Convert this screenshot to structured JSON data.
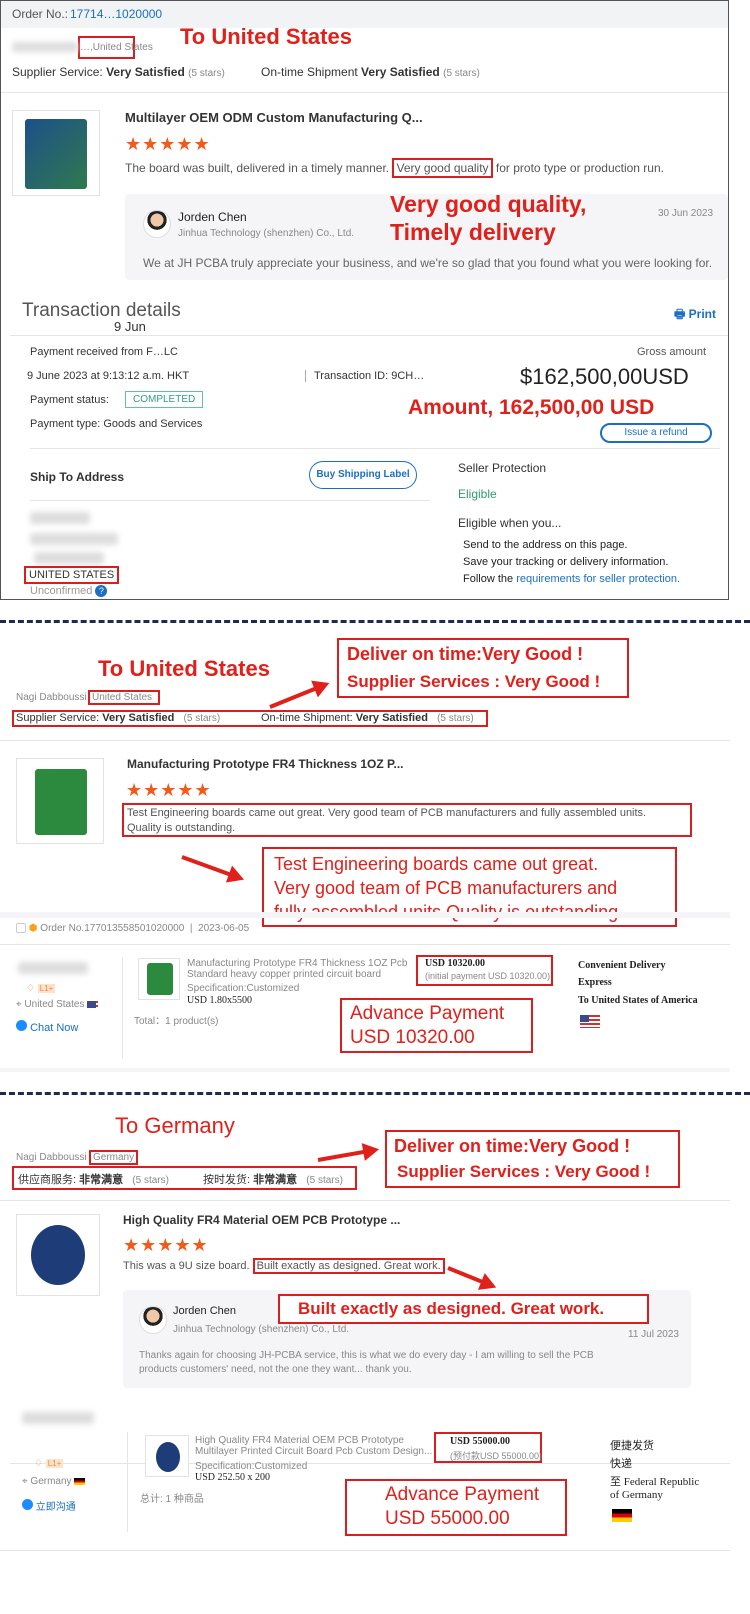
{
  "s1": {
    "order_label": "Order No.:",
    "order_no": "17714…1020000",
    "ship_to": "…,United States",
    "overlay_to": "To United States",
    "supplier_service_label": "Supplier Service:",
    "supplier_service": "Very Satisfied",
    "supplier_stars": "(5 stars)",
    "ontime_label": "On-time Shipment",
    "ontime": "Very Satisfied",
    "ontime_stars": "(5 stars)",
    "product_title": "Multilayer OEM ODM Custom Manufacturing Q...",
    "stars": "★★★★★",
    "review_pre": "The board was built, delivered in a timely manner.",
    "review_hl": "Very good quality",
    "review_post": "for proto type or production run.",
    "overlay_quality_1": "Very good quality,",
    "overlay_quality_2": "Timely delivery",
    "reply_name": "Jorden Chen",
    "reply_company": "Jinhua Technology (shenzhen) Co., Ltd.",
    "reply_date": "30 Jun 2023",
    "reply_text": "We at JH PCBA truly appreciate your business, and we're so glad that you found what you were looking for.",
    "tx_title": "Transaction details",
    "tx_date": "9 Jun",
    "print": "Print",
    "payment_from": "Payment received from F…LC",
    "gross_label": "Gross amount",
    "datetime": "9 June 2023 at 9:13:12 a.m. HKT",
    "txid": "Transaction ID: 9CH…",
    "gross": "$162,500,00USD",
    "status_label": "Payment status:",
    "status": "COMPLETED",
    "overlay_amount": "Amount, 162,500,00 USD",
    "refund": "Issue a refund",
    "payment_type": "Payment type: Goods and Services",
    "ship_to_address": "Ship To Address",
    "buy_label": "Buy Shipping Label",
    "seller_protection": "Seller Protection",
    "eligible": "Eligible",
    "eligible_when": "Eligible when you...",
    "req1": "Send to the address on this page.",
    "req2": "Save your tracking or delivery information.",
    "req3_pre": "Follow the",
    "req3_link": "requirements for seller protection.",
    "country": "UNITED STATES",
    "unconfirmed": "Unconfirmed"
  },
  "s2": {
    "overlay_to": "To United States",
    "overlay_deliver": "Deliver on  time:Very Good !",
    "overlay_services": "Supplier Services : Very Good !",
    "buyer": "Nagi Dabboussi",
    "country": "United States",
    "supplier_service_label": "Supplier Service:",
    "supplier_service": "Very Satisfied",
    "supplier_stars": "(5 stars)",
    "ontime_label": "On-time Shipment:",
    "ontime": "Very Satisfied",
    "ontime_stars": "(5 stars)",
    "product_title": "Manufacturing Prototype FR4 Thickness 1OZ P...",
    "stars": "★★★★★",
    "review_1": "Test Engineering boards came out great.  Very good team of PCB manufacturers and fully assembled units.",
    "review_2": "Quality is outstanding.",
    "overlay_review_1": "Test Engineering boards came out great.",
    "overlay_review_2": "Very good team of PCB manufacturers and",
    "overlay_review_3": "fully assembled units.Quality is outstanding.",
    "order_no": "Order No.177013558501020000",
    "order_date": "2023-06-05",
    "level": "L1+",
    "location": "United States",
    "chat": "Chat Now",
    "item_1": "Manufacturing Prototype FR4 Thickness 1OZ Pcb",
    "item_2": "Standard heavy copper printed circuit board",
    "spec": "Specification:Customized",
    "unit_price": "USD 1.80x5500",
    "total": "Total：1 product(s)",
    "amount": "USD 10320.00",
    "initial": "(initial payment USD 10320.00)",
    "delivery_1": "Convenient Delivery",
    "delivery_2": "Express",
    "delivery_3": "To United States of America",
    "overlay_adv_1": "Advance Payment",
    "overlay_adv_2": "USD 10320.00"
  },
  "s3": {
    "overlay_to": "To Germany",
    "overlay_deliver": "Deliver on  time:Very Good !",
    "overlay_services": "Supplier Services : Very Good !",
    "buyer": "Nagi Dabboussi",
    "country": "Germany",
    "supplier_service_label": "供应商服务:",
    "supplier_service": "非常满意",
    "supplier_stars": "(5 stars)",
    "ontime_label": "按时发货:",
    "ontime": "非常满意",
    "ontime_stars": "(5 stars)",
    "product_title": "High Quality FR4 Material OEM PCB Prototype ...",
    "stars": "★★★★★",
    "review_pre": "This was a 9U size board.",
    "review_hl": "Built exactly as designed.  Great work.",
    "overlay_review": "Built exactly as designed. Great work.",
    "reply_name": "Jorden Chen",
    "reply_company": "Jinhua Technology (shenzhen) Co., Ltd.",
    "reply_date": "11 Jul 2023",
    "reply_1": "Thanks again for choosing JH-PCBA service, this is what we do every day - I am willing to sell the PCB",
    "reply_2": "products customers' need, not the one they want... thank you.",
    "level": "L1+",
    "location": "Germany",
    "chat": "立即沟通",
    "item_1": "High Quality FR4 Material OEM PCB Prototype",
    "item_2": "Multilayer Printed Circuit Board Pcb Custom Design...",
    "spec": "Specification:Customized",
    "unit_price": "USD 252.50 x 200",
    "total": "总计: 1 种商品",
    "amount": "USD 55000.00",
    "initial": "(预付款USD 55000.00)",
    "delivery_1": "便捷发货",
    "delivery_2": "快递",
    "delivery_3": "至 Federal Republic",
    "delivery_4": "of Germany",
    "overlay_adv_1": "Advance Payment",
    "overlay_adv_2": "USD 55000.00"
  },
  "colors": {
    "accent_red": "#e0201a",
    "link_blue": "#1a6fc4",
    "star_orange": "#f25a1b",
    "divider_navy": "#1d2b4f"
  }
}
